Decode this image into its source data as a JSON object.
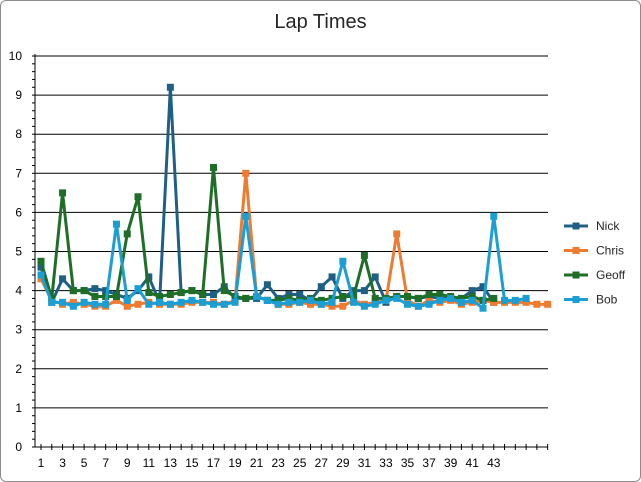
{
  "chart_data": {
    "type": "line",
    "title": "Lap Times",
    "xlabel": "",
    "ylabel": "",
    "ylim": [
      0,
      10
    ],
    "y_ticks": [
      0,
      1,
      2,
      3,
      4,
      5,
      6,
      7,
      8,
      9,
      10
    ],
    "x_tick_labels": [
      1,
      3,
      5,
      7,
      9,
      11,
      13,
      15,
      17,
      19,
      21,
      23,
      25,
      27,
      29,
      31,
      33,
      35,
      37,
      39,
      41,
      43
    ],
    "grid": "horizontal",
    "legend": "right",
    "series": [
      {
        "name": "Nick",
        "color": "#1f5f86",
        "values": [
          4.6,
          3.7,
          4.3,
          4.0,
          4.0,
          4.05,
          4.0,
          3.9,
          3.8,
          4.0,
          4.35,
          3.7,
          9.2,
          3.95,
          4.0,
          3.9,
          3.9,
          4.1,
          3.8,
          3.8,
          3.8,
          4.15,
          3.8,
          3.9,
          3.9,
          3.75,
          4.1,
          4.35,
          3.8,
          4.0,
          4.0,
          4.35,
          3.7,
          3.85,
          3.85,
          3.8,
          3.85,
          3.8,
          3.8,
          3.8,
          4.0,
          4.1,
          3.7
        ]
      },
      {
        "name": "Chris",
        "color": "#ee7b30",
        "values": [
          4.3,
          3.75,
          3.65,
          3.7,
          3.65,
          3.6,
          3.6,
          3.75,
          3.6,
          3.65,
          3.7,
          3.65,
          3.65,
          3.65,
          3.7,
          3.7,
          3.7,
          3.65,
          3.75,
          7.0,
          3.85,
          3.75,
          3.65,
          3.65,
          3.7,
          3.65,
          3.65,
          3.6,
          3.6,
          3.75,
          3.65,
          3.7,
          3.75,
          5.45,
          3.75,
          3.6,
          3.75,
          3.7,
          3.75,
          3.65,
          3.7,
          3.75,
          3.7,
          3.7,
          3.7,
          3.7,
          3.65,
          3.65
        ]
      },
      {
        "name": "Geoff",
        "color": "#1f6e28",
        "values": [
          4.75,
          3.8,
          6.5,
          4.0,
          4.0,
          3.85,
          3.85,
          3.85,
          5.45,
          6.4,
          3.95,
          3.85,
          3.9,
          3.95,
          4.0,
          3.9,
          7.15,
          4.0,
          3.85,
          3.8,
          3.85,
          3.75,
          3.75,
          3.8,
          3.75,
          3.8,
          3.75,
          3.8,
          3.85,
          3.85,
          4.9,
          3.8,
          3.8,
          3.85,
          3.85,
          3.8,
          3.9,
          3.9,
          3.85,
          3.8,
          3.85,
          3.75,
          3.8
        ]
      },
      {
        "name": "Bob",
        "color": "#1a9ed4",
        "values": [
          4.4,
          3.7,
          3.7,
          3.6,
          3.7,
          3.65,
          3.65,
          5.7,
          3.75,
          4.05,
          3.65,
          3.7,
          3.65,
          3.7,
          3.75,
          3.7,
          3.65,
          3.65,
          3.7,
          5.9,
          3.85,
          3.75,
          3.65,
          3.7,
          3.7,
          3.75,
          3.65,
          3.7,
          4.75,
          3.7,
          3.6,
          3.65,
          3.75,
          3.8,
          3.65,
          3.6,
          3.65,
          3.75,
          3.8,
          3.7,
          3.75,
          3.55,
          5.9,
          3.75,
          3.75,
          3.8
        ]
      }
    ]
  }
}
